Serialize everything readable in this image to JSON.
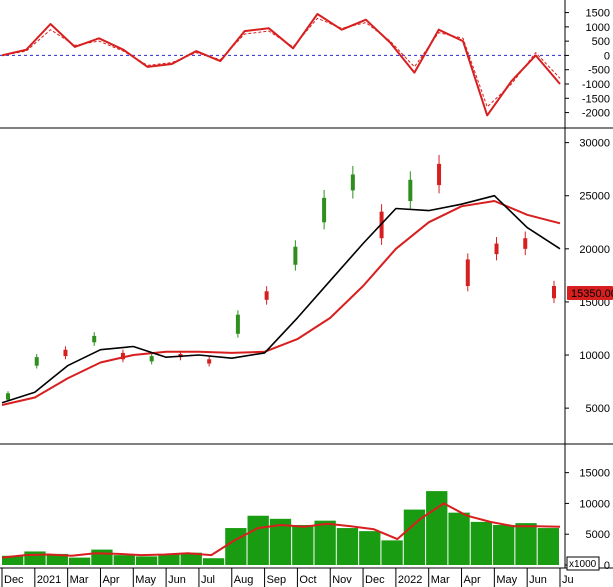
{
  "colors": {
    "up": "#2f8f1e",
    "down": "#d81f1f",
    "ma_fast": "#000000",
    "ma_slow": "#d81f1f",
    "volume_bars": "#1a9c12",
    "volume_ma": "#d81f1f",
    "osc_line": "#d81f1f",
    "osc_signal": "#d81f1f",
    "zero_line": "#2b2bcc",
    "price_badge_bg": "#d81f1f",
    "price_badge_text": "#ffffff"
  },
  "last_price_label": "15350.00",
  "volume_unit_label": "x1000",
  "chart_data": [
    {
      "type": "line",
      "panel": "oscillator",
      "series": [
        {
          "values": [
            0,
            200,
            1100,
            300,
            600,
            200,
            -400,
            -300,
            150,
            -200,
            850,
            950,
            250,
            1450,
            900,
            1250,
            450,
            -600,
            900,
            500,
            -2100,
            -900,
            0,
            -1000
          ]
        },
        {
          "values": [
            0,
            150,
            900,
            350,
            500,
            150,
            -350,
            -250,
            100,
            -150,
            750,
            850,
            300,
            1300,
            950,
            1150,
            500,
            -400,
            800,
            600,
            -1800,
            -1000,
            100,
            -800
          ]
        }
      ],
      "ylim": [
        -2400,
        1800
      ],
      "yticks": [
        "1500",
        "1000",
        "500",
        "0",
        "-500",
        "-1000",
        "-1500",
        "-2000"
      ]
    },
    {
      "type": "line",
      "panel": "price",
      "ylim": [
        2000,
        31000
      ],
      "yticks": [
        "30000",
        "25000",
        "20000",
        "15000",
        "10000",
        "5000"
      ],
      "series": [
        {
          "values": [
            5500,
            6500,
            9000,
            10500,
            10800,
            9800,
            10000,
            9700,
            10200,
            13500,
            17000,
            20500,
            23800,
            23600,
            24200,
            25000,
            22000,
            20000
          ]
        },
        {
          "values": [
            5300,
            6000,
            7800,
            9300,
            10000,
            10300,
            10300,
            10200,
            10300,
            11500,
            13500,
            16500,
            20000,
            22500,
            24000,
            24500,
            23200,
            22400
          ]
        }
      ],
      "candles": [
        {
          "o": 5800,
          "c": 6400
        },
        {
          "o": 9000,
          "c": 9800
        },
        {
          "o": 10500,
          "c": 9900
        },
        {
          "o": 11200,
          "c": 11800
        },
        {
          "o": 10200,
          "c": 9600
        },
        {
          "o": 9400,
          "c": 9900
        },
        {
          "o": 10100,
          "c": 9800
        },
        {
          "o": 9600,
          "c": 9200
        },
        {
          "o": 12000,
          "c": 13800
        },
        {
          "o": 16000,
          "c": 15200
        },
        {
          "o": 18500,
          "c": 20200
        },
        {
          "o": 22500,
          "c": 24800
        },
        {
          "o": 25500,
          "c": 27000
        },
        {
          "o": 23500,
          "c": 21000
        },
        {
          "o": 24500,
          "c": 26500
        },
        {
          "o": 28000,
          "c": 26000
        },
        {
          "o": 19000,
          "c": 16500
        },
        {
          "o": 20500,
          "c": 19500
        },
        {
          "o": 21000,
          "c": 20000
        },
        {
          "o": 16500,
          "c": 15350
        }
      ]
    },
    {
      "type": "bar",
      "panel": "volume",
      "ylim": [
        0,
        19000
      ],
      "yticks": [
        "15000",
        "10000",
        "5000",
        "0"
      ],
      "values": [
        1500,
        2200,
        1800,
        1200,
        2500,
        1600,
        1400,
        1700,
        2000,
        1100,
        6000,
        8000,
        7500,
        6500,
        7200,
        6000,
        5500,
        4000,
        9000,
        12000,
        8500,
        7000,
        6500,
        6800,
        6000
      ],
      "ma_values": [
        1200,
        1600,
        1700,
        1500,
        1900,
        1800,
        1600,
        1700,
        1900,
        1600,
        4000,
        6000,
        6500,
        6200,
        6700,
        6300,
        5800,
        4200,
        7500,
        10000,
        8000,
        7000,
        6300,
        6300,
        6200
      ]
    }
  ],
  "x_axis": {
    "labels": [
      "Dec",
      "2021",
      "Mar",
      "Apr",
      "May",
      "Jun",
      "Jul",
      "Aug",
      "Sep",
      "Oct",
      "Nov",
      "Dec",
      "2022",
      "Mar",
      "Apr",
      "May",
      "Jun",
      "Ju"
    ]
  }
}
